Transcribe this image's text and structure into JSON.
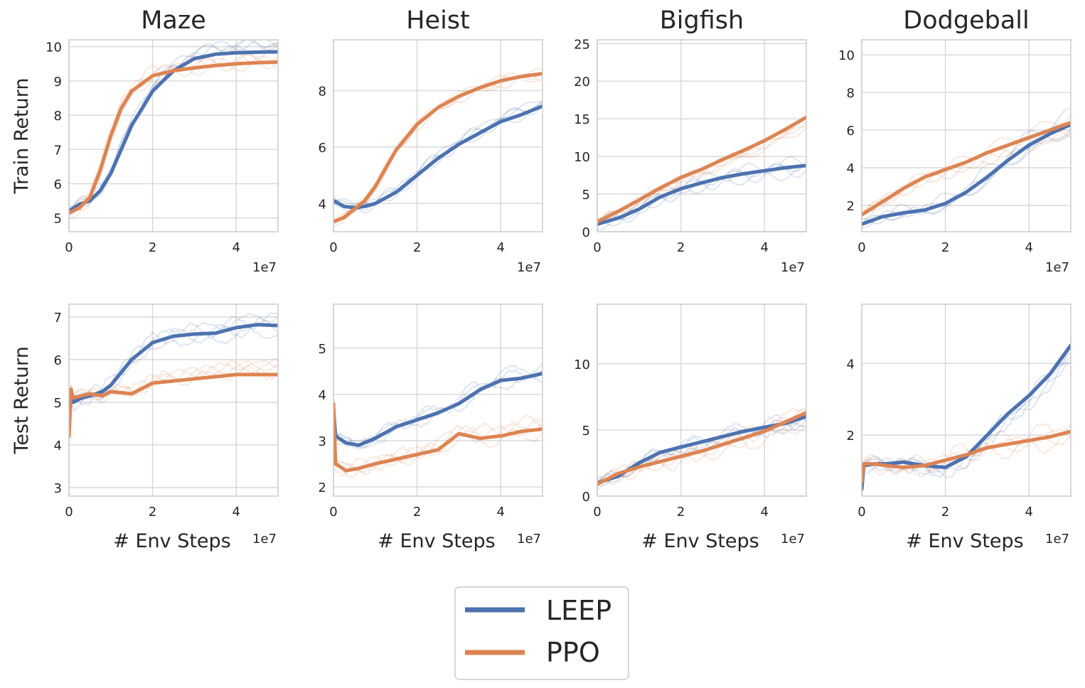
{
  "chart_data": {
    "type": "line",
    "legend": {
      "position": "bottom-center",
      "entries": [
        {
          "name": "LEEP",
          "color": "#4c72b0"
        },
        {
          "name": "PPO",
          "color": "#dd8452"
        }
      ]
    },
    "x_offset_label": "1e7",
    "panels": [
      {
        "row": "train",
        "title": "Maze",
        "ylabel": "Train Return",
        "xlabel": "",
        "xlim": [
          0,
          5
        ],
        "ylim": [
          4.6,
          10.2
        ],
        "xticks": [
          0,
          2,
          4
        ],
        "yticks": [
          5,
          6,
          7,
          8,
          9,
          10
        ],
        "series": [
          {
            "name": "LEEP",
            "x": [
              0,
              0.25,
              0.5,
              0.75,
              1.0,
              1.25,
              1.5,
              2.0,
              2.5,
              3.0,
              3.5,
              4.0,
              4.5,
              5.0
            ],
            "values": [
              5.2,
              5.4,
              5.5,
              5.8,
              6.3,
              7.0,
              7.7,
              8.7,
              9.3,
              9.65,
              9.78,
              9.82,
              9.84,
              9.85
            ]
          },
          {
            "name": "PPO",
            "x": [
              0,
              0.25,
              0.5,
              0.75,
              1.0,
              1.25,
              1.5,
              2.0,
              2.5,
              3.0,
              3.5,
              4.0,
              4.5,
              5.0
            ],
            "values": [
              5.15,
              5.3,
              5.6,
              6.4,
              7.4,
              8.2,
              8.7,
              9.15,
              9.3,
              9.38,
              9.45,
              9.5,
              9.53,
              9.55
            ]
          }
        ]
      },
      {
        "row": "train",
        "title": "Heist",
        "ylabel": "",
        "xlabel": "",
        "xlim": [
          0,
          5
        ],
        "ylim": [
          3.0,
          9.8
        ],
        "xticks": [
          0,
          2,
          4
        ],
        "yticks": [
          4,
          6,
          8
        ],
        "series": [
          {
            "name": "LEEP",
            "x": [
              0,
              0.25,
              0.5,
              0.75,
              1.0,
              1.5,
              2.0,
              2.5,
              3.0,
              3.5,
              4.0,
              4.5,
              5.0
            ],
            "values": [
              4.1,
              3.9,
              3.85,
              3.9,
              4.0,
              4.4,
              5.0,
              5.6,
              6.1,
              6.5,
              6.9,
              7.15,
              7.45
            ]
          },
          {
            "name": "PPO",
            "x": [
              0,
              0.25,
              0.5,
              0.75,
              1.0,
              1.5,
              2.0,
              2.5,
              3.0,
              3.5,
              4.0,
              4.5,
              5.0
            ],
            "values": [
              3.35,
              3.5,
              3.8,
              4.1,
              4.6,
              5.9,
              6.8,
              7.4,
              7.8,
              8.1,
              8.35,
              8.5,
              8.6
            ]
          }
        ]
      },
      {
        "row": "train",
        "title": "Bigfish",
        "ylabel": "",
        "xlabel": "",
        "xlim": [
          0,
          5
        ],
        "ylim": [
          0,
          25.5
        ],
        "xticks": [
          0,
          2,
          4
        ],
        "yticks": [
          0,
          5,
          10,
          15,
          20,
          25
        ],
        "series": [
          {
            "name": "LEEP",
            "x": [
              0,
              0.5,
              1.0,
              1.5,
              2.0,
              2.5,
              3.0,
              3.5,
              4.0,
              4.5,
              5.0
            ],
            "values": [
              1.0,
              1.8,
              3.0,
              4.6,
              5.7,
              6.5,
              7.2,
              7.7,
              8.1,
              8.5,
              8.8
            ]
          },
          {
            "name": "PPO",
            "x": [
              0,
              0.5,
              1.0,
              1.5,
              2.0,
              2.5,
              3.0,
              3.5,
              4.0,
              4.5,
              5.0
            ],
            "values": [
              1.3,
              2.7,
              4.2,
              5.8,
              7.2,
              8.3,
              9.6,
              10.8,
              12.1,
              13.6,
              15.2
            ]
          }
        ]
      },
      {
        "row": "train",
        "title": "Dodgeball",
        "ylabel": "",
        "xlabel": "",
        "xlim": [
          0,
          5
        ],
        "ylim": [
          0.6,
          10.8
        ],
        "xticks": [
          0,
          2,
          4
        ],
        "yticks": [
          2,
          4,
          6,
          8,
          10
        ],
        "series": [
          {
            "name": "LEEP",
            "x": [
              0,
              0.5,
              1.0,
              1.5,
              2.0,
              2.5,
              3.0,
              3.5,
              4.0,
              4.5,
              5.0
            ],
            "values": [
              1.0,
              1.4,
              1.6,
              1.75,
              2.1,
              2.7,
              3.5,
              4.4,
              5.2,
              5.8,
              6.3
            ]
          },
          {
            "name": "PPO",
            "x": [
              0,
              0.5,
              1.0,
              1.5,
              2.0,
              2.5,
              3.0,
              3.5,
              4.0,
              4.5,
              5.0
            ],
            "values": [
              1.5,
              2.2,
              2.9,
              3.5,
              3.9,
              4.3,
              4.8,
              5.2,
              5.6,
              6.0,
              6.4
            ]
          }
        ]
      },
      {
        "row": "test",
        "title": "",
        "ylabel": "Test Return",
        "xlabel": "# Env Steps",
        "xlim": [
          0,
          5
        ],
        "ylim": [
          2.8,
          7.3
        ],
        "xticks": [
          0,
          2,
          4
        ],
        "yticks": [
          3,
          4,
          5,
          6,
          7
        ],
        "series": [
          {
            "name": "LEEP",
            "x": [
              0,
              0.05,
              0.1,
              0.3,
              0.5,
              0.8,
              1.0,
              1.5,
              2.0,
              2.5,
              3.0,
              3.5,
              4.0,
              4.5,
              5.0
            ],
            "values": [
              4.4,
              5.3,
              5.0,
              5.1,
              5.15,
              5.25,
              5.4,
              6.0,
              6.4,
              6.55,
              6.6,
              6.62,
              6.75,
              6.82,
              6.8
            ]
          },
          {
            "name": "PPO",
            "x": [
              0,
              0.05,
              0.1,
              0.3,
              0.5,
              0.8,
              1.0,
              1.5,
              2.0,
              2.5,
              3.0,
              3.5,
              4.0,
              4.5,
              5.0
            ],
            "values": [
              4.2,
              5.3,
              5.1,
              5.15,
              5.2,
              5.15,
              5.25,
              5.2,
              5.45,
              5.5,
              5.55,
              5.6,
              5.65,
              5.65,
              5.65
            ]
          }
        ]
      },
      {
        "row": "test",
        "title": "",
        "ylabel": "",
        "xlabel": "# Env Steps",
        "xlim": [
          0,
          5
        ],
        "ylim": [
          1.8,
          5.95
        ],
        "xticks": [
          0,
          2,
          4
        ],
        "yticks": [
          2,
          3,
          4,
          5
        ],
        "series": [
          {
            "name": "LEEP",
            "x": [
              0,
              0.05,
              0.3,
              0.6,
              1.0,
              1.5,
              2.0,
              2.5,
              3.0,
              3.5,
              4.0,
              4.5,
              5.0
            ],
            "values": [
              3.7,
              3.1,
              2.95,
              2.9,
              3.05,
              3.3,
              3.45,
              3.6,
              3.8,
              4.1,
              4.3,
              4.35,
              4.45
            ]
          },
          {
            "name": "PPO",
            "x": [
              0,
              0.05,
              0.3,
              0.6,
              1.0,
              1.5,
              2.0,
              2.5,
              3.0,
              3.5,
              4.0,
              4.5,
              5.0
            ],
            "values": [
              3.8,
              2.5,
              2.35,
              2.4,
              2.5,
              2.6,
              2.7,
              2.8,
              3.15,
              3.05,
              3.1,
              3.2,
              3.25
            ]
          }
        ]
      },
      {
        "row": "test",
        "title": "",
        "ylabel": "",
        "xlabel": "# Env Steps",
        "xlim": [
          0,
          5
        ],
        "ylim": [
          0,
          14.5
        ],
        "xticks": [
          0,
          2,
          4
        ],
        "yticks": [
          0,
          5,
          10
        ],
        "series": [
          {
            "name": "LEEP",
            "x": [
              0,
              0.5,
              1.0,
              1.5,
              2.0,
              2.5,
              3.0,
              3.5,
              4.0,
              4.5,
              5.0
            ],
            "values": [
              1.0,
              1.5,
              2.5,
              3.3,
              3.7,
              4.1,
              4.5,
              4.9,
              5.2,
              5.5,
              6.0
            ]
          },
          {
            "name": "PPO",
            "x": [
              0,
              0.5,
              1.0,
              1.5,
              2.0,
              2.5,
              3.0,
              3.5,
              4.0,
              4.5,
              5.0
            ],
            "values": [
              0.9,
              1.7,
              2.2,
              2.6,
              3.0,
              3.4,
              3.9,
              4.4,
              4.9,
              5.6,
              6.3
            ]
          }
        ]
      },
      {
        "row": "test",
        "title": "",
        "ylabel": "",
        "xlabel": "# Env Steps",
        "xlim": [
          0,
          5
        ],
        "ylim": [
          0.3,
          5.65
        ],
        "xticks": [
          0,
          2,
          4
        ],
        "yticks": [
          2,
          4
        ],
        "series": [
          {
            "name": "LEEP",
            "x": [
              0,
              0.05,
              0.3,
              0.6,
              1.0,
              1.5,
              2.0,
              2.5,
              3.0,
              3.5,
              4.0,
              4.5,
              5.0
            ],
            "values": [
              0.5,
              1.15,
              1.2,
              1.2,
              1.25,
              1.15,
              1.1,
              1.4,
              2.0,
              2.6,
              3.1,
              3.7,
              4.5
            ]
          },
          {
            "name": "PPO",
            "x": [
              0,
              0.05,
              0.3,
              0.6,
              1.0,
              1.5,
              2.0,
              2.5,
              3.0,
              3.5,
              4.0,
              4.5,
              5.0
            ],
            "values": [
              0.7,
              1.2,
              1.2,
              1.15,
              1.1,
              1.15,
              1.3,
              1.45,
              1.65,
              1.75,
              1.85,
              1.95,
              2.1
            ]
          }
        ]
      }
    ]
  }
}
